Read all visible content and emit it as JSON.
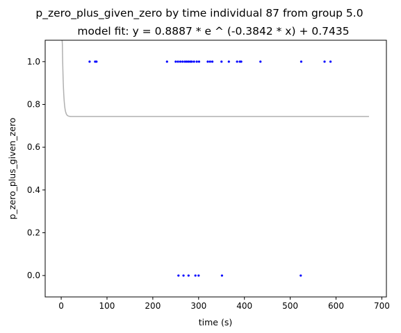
{
  "chart_data": {
    "type": "scatter",
    "title": "p_zero_plus_given_zero by time individual 87 from group 5.0",
    "subtitle": "model fit: y = 0.8887 * e ^ (-0.3842 * x) + 0.7435",
    "xlabel": "time (s)",
    "ylabel": "p_zero_plus_given_zero",
    "xlim": [
      -35,
      710
    ],
    "ylim": [
      -0.1,
      1.1
    ],
    "x_ticks": [
      "0",
      "100",
      "200",
      "300",
      "400",
      "500",
      "600",
      "700"
    ],
    "y_ticks": [
      "0.0",
      "0.2",
      "0.4",
      "0.6",
      "0.8",
      "1.0"
    ],
    "grid": false,
    "legend": "none",
    "points_color": "#0000ff",
    "fit_color": "#b0b0b0",
    "points": {
      "x": [
        62,
        74,
        77,
        231,
        250,
        255,
        260,
        265,
        270,
        274,
        278,
        282,
        285,
        290,
        296,
        301,
        320,
        325,
        330,
        350,
        366,
        384,
        390,
        393,
        435,
        524,
        575,
        588,
        256,
        267,
        278,
        293,
        300,
        351,
        523
      ],
      "y": [
        1,
        1,
        1,
        1,
        1,
        1,
        1,
        1,
        1,
        1,
        1,
        1,
        1,
        1,
        1,
        1,
        1,
        1,
        1,
        1,
        1,
        1,
        1,
        1,
        1,
        1,
        1,
        1,
        0,
        0,
        0,
        0,
        0,
        0,
        0
      ]
    },
    "fit": {
      "a": 0.8887,
      "b": -0.3842,
      "c": 0.7435,
      "x_range": [
        0,
        672
      ]
    }
  }
}
